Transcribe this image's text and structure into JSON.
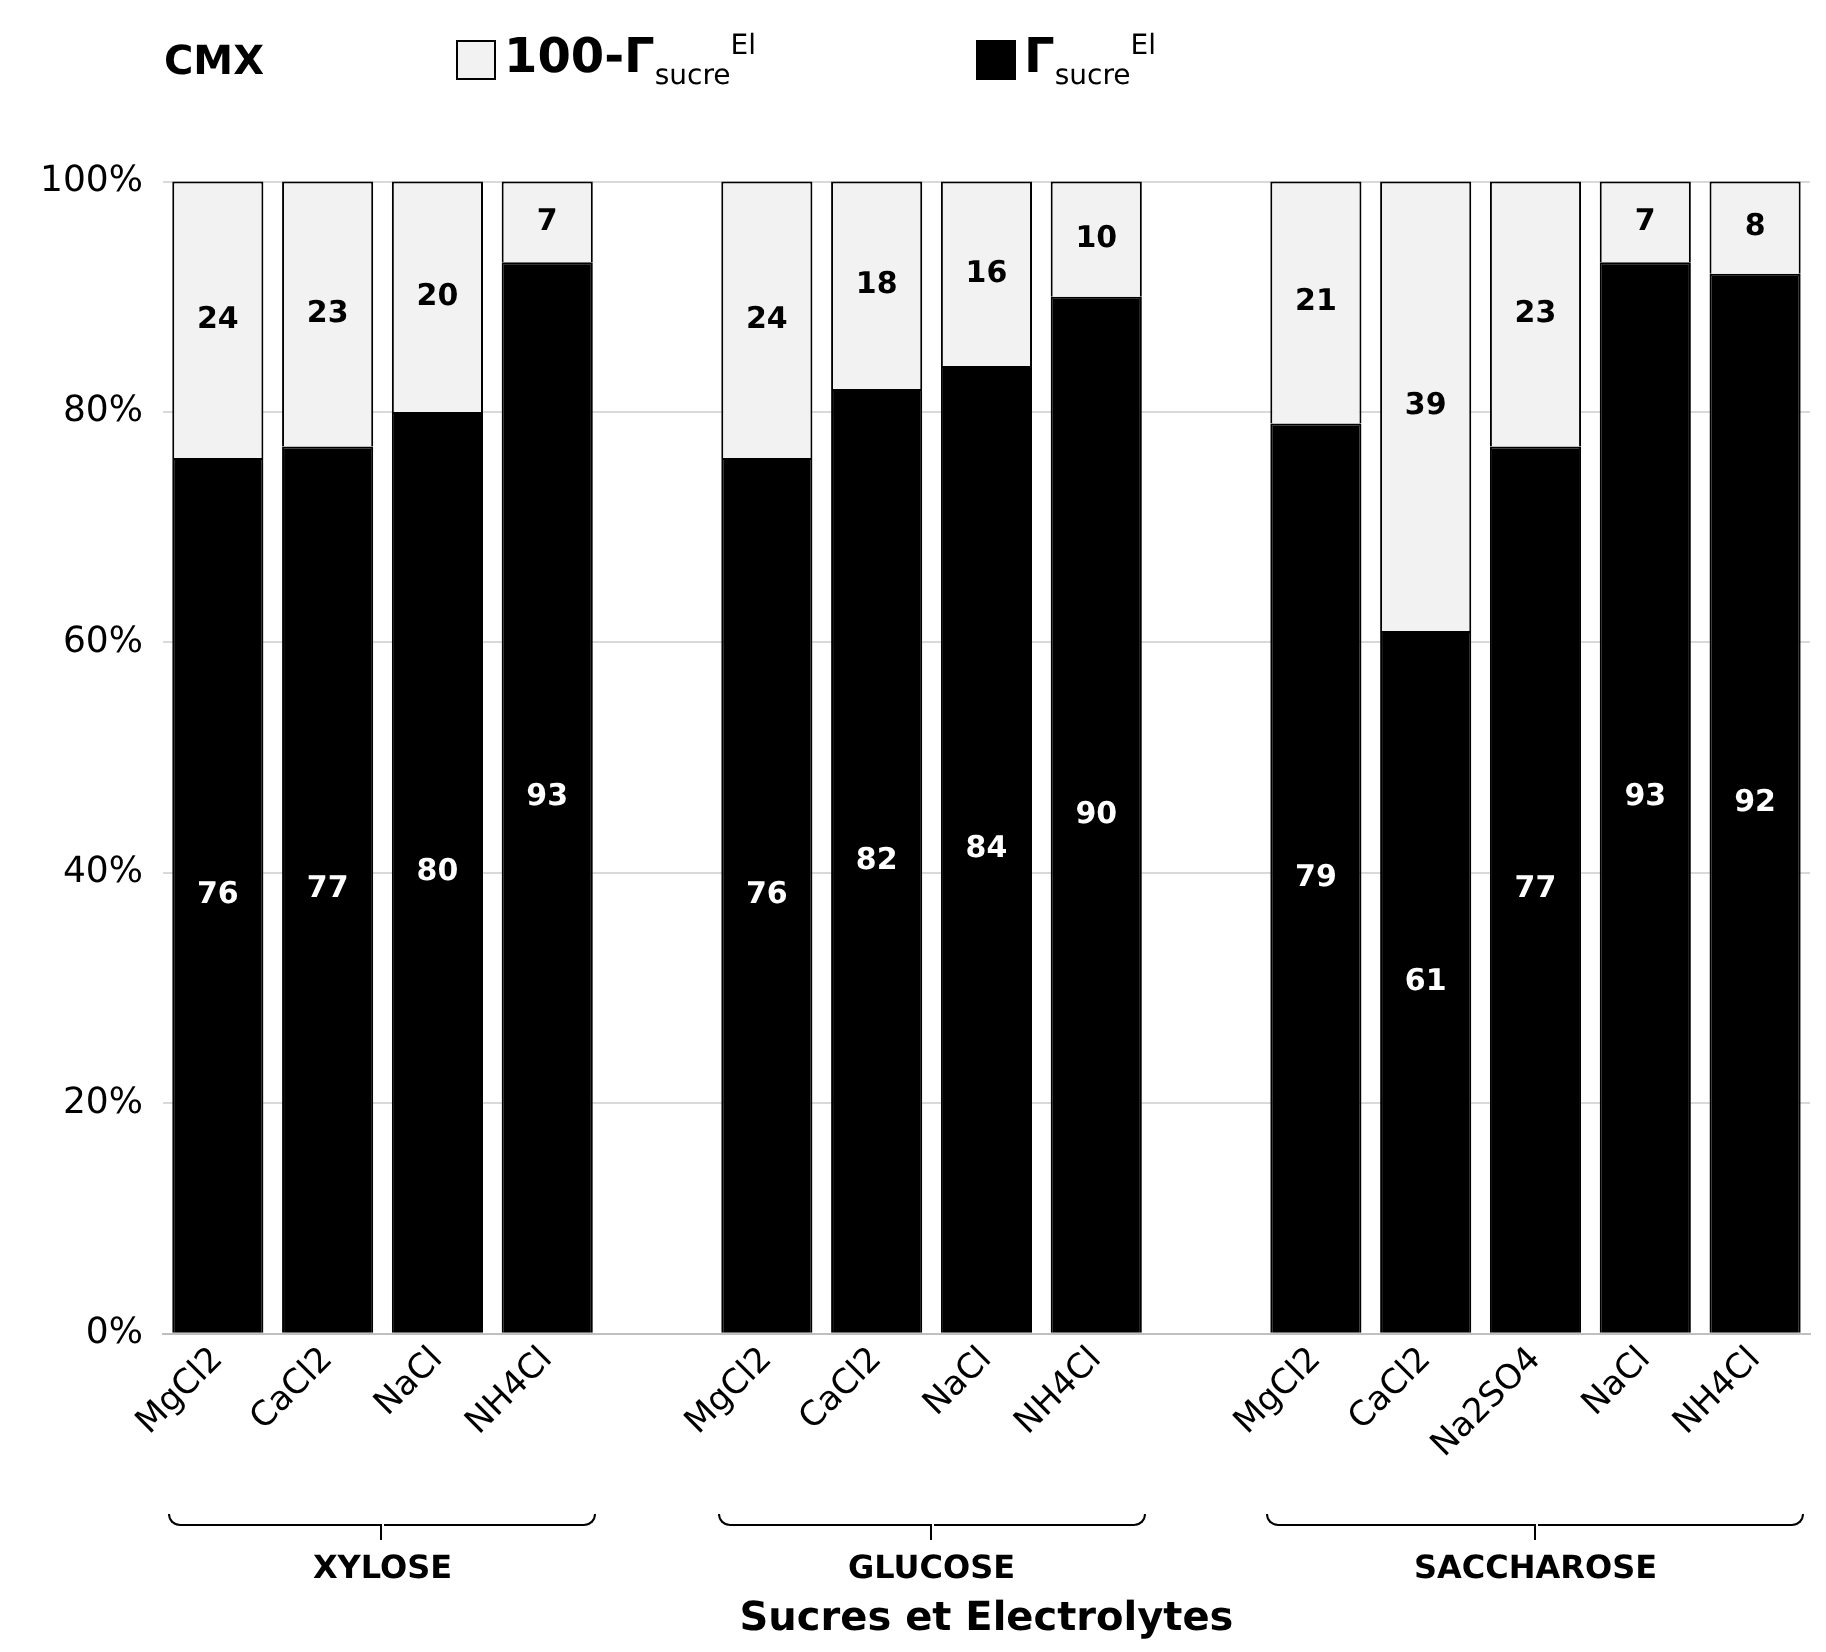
{
  "chart_data": {
    "type": "bar",
    "title": "CMX",
    "xlabel": "Sucres et Electrolytes",
    "stacked": true,
    "data_labels": true,
    "grid": "y",
    "legend": "top",
    "categories": [
      "MgCl2",
      "CaCl2",
      "NaCl",
      "NH4Cl",
      null,
      "MgCl2",
      "CaCl2",
      "NaCl",
      "NH4Cl",
      null,
      "MgCl2",
      "CaCl2",
      "Na2SO4",
      "NaCl",
      "NH4Cl"
    ],
    "series": [
      {
        "name": "Γ$_{sucre}$$^{El}$",
        "color": "#000000",
        "values": [
          76,
          77,
          80,
          93,
          null,
          76,
          82,
          84,
          90,
          null,
          79,
          61,
          77,
          93,
          92
        ]
      },
      {
        "name": "100-Γ$_{sucre}$$^{El}$",
        "color": "#f2f2f2",
        "values": [
          24,
          23,
          20,
          7,
          null,
          24,
          18,
          16,
          10,
          null,
          21,
          39,
          23,
          7,
          8
        ]
      }
    ],
    "ylim": [
      0,
      100
    ],
    "yticks": [
      {
        "value": 0,
        "label": "0%"
      },
      {
        "value": 20,
        "label": "20%"
      },
      {
        "value": 40,
        "label": "40%"
      },
      {
        "value": 60,
        "label": "60%"
      },
      {
        "value": 80,
        "label": "80%"
      },
      {
        "value": 100,
        "label": "100%"
      }
    ],
    "annotations": [
      "XYLOSE",
      "GLUCOSE",
      "SACCHAROSE"
    ]
  }
}
